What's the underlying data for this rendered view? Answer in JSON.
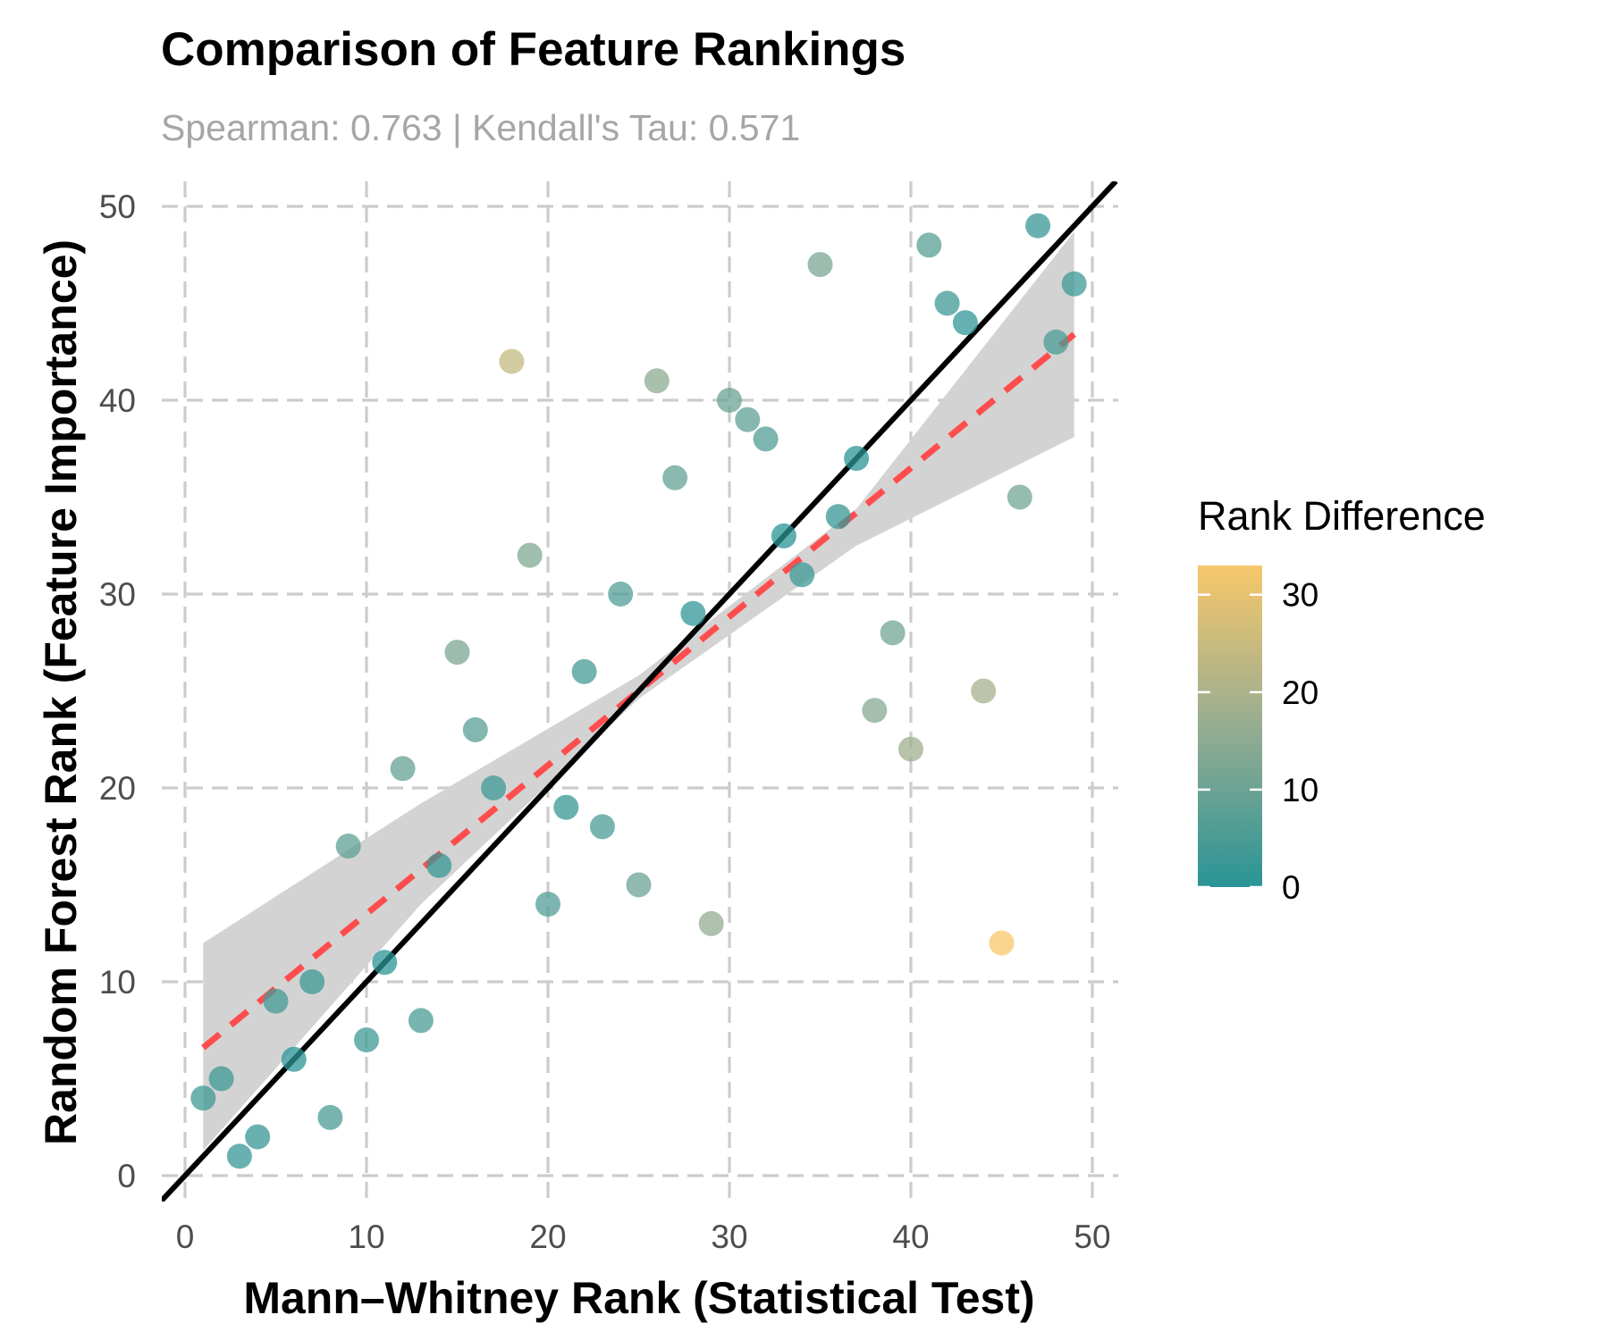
{
  "chart_data": {
    "type": "scatter",
    "title": "Comparison of Feature Rankings",
    "subtitle": "Spearman: 0.763 | Kendall's Tau: 0.571",
    "xlabel": "Mann–Whitney Rank (Statistical Test)",
    "ylabel": "Random Forest Rank (Feature Importance)",
    "xlim": [
      -1.3,
      51.3
    ],
    "ylim": [
      -1.3,
      51.3
    ],
    "x_ticks": [
      0,
      10,
      20,
      30,
      40,
      50
    ],
    "y_ticks": [
      0,
      10,
      20,
      30,
      40,
      50
    ],
    "grid": true,
    "grid_style": "dashed",
    "points": [
      {
        "x": 1,
        "y": 4
      },
      {
        "x": 2,
        "y": 5
      },
      {
        "x": 3,
        "y": 1
      },
      {
        "x": 4,
        "y": 2
      },
      {
        "x": 5,
        "y": 9
      },
      {
        "x": 6,
        "y": 6
      },
      {
        "x": 7,
        "y": 10
      },
      {
        "x": 8,
        "y": 3
      },
      {
        "x": 9,
        "y": 17
      },
      {
        "x": 10,
        "y": 7
      },
      {
        "x": 11,
        "y": 11
      },
      {
        "x": 12,
        "y": 21
      },
      {
        "x": 13,
        "y": 8
      },
      {
        "x": 14,
        "y": 16
      },
      {
        "x": 15,
        "y": 27
      },
      {
        "x": 16,
        "y": 23
      },
      {
        "x": 17,
        "y": 20
      },
      {
        "x": 18,
        "y": 42
      },
      {
        "x": 19,
        "y": 32
      },
      {
        "x": 20,
        "y": 14
      },
      {
        "x": 21,
        "y": 19
      },
      {
        "x": 22,
        "y": 26
      },
      {
        "x": 23,
        "y": 18
      },
      {
        "x": 24,
        "y": 30
      },
      {
        "x": 25,
        "y": 15
      },
      {
        "x": 26,
        "y": 41
      },
      {
        "x": 27,
        "y": 36
      },
      {
        "x": 28,
        "y": 29
      },
      {
        "x": 29,
        "y": 13
      },
      {
        "x": 30,
        "y": 40
      },
      {
        "x": 31,
        "y": 39
      },
      {
        "x": 32,
        "y": 38
      },
      {
        "x": 33,
        "y": 33
      },
      {
        "x": 34,
        "y": 31
      },
      {
        "x": 35,
        "y": 47
      },
      {
        "x": 36,
        "y": 34
      },
      {
        "x": 37,
        "y": 37
      },
      {
        "x": 38,
        "y": 24
      },
      {
        "x": 39,
        "y": 28
      },
      {
        "x": 40,
        "y": 22
      },
      {
        "x": 41,
        "y": 48
      },
      {
        "x": 42,
        "y": 45
      },
      {
        "x": 43,
        "y": 44
      },
      {
        "x": 44,
        "y": 25
      },
      {
        "x": 45,
        "y": 12
      },
      {
        "x": 46,
        "y": 35
      },
      {
        "x": 47,
        "y": 49
      },
      {
        "x": 48,
        "y": 43
      },
      {
        "x": 49,
        "y": 46
      }
    ],
    "reference_line": {
      "slope": 1,
      "intercept": 0,
      "color": "#000000"
    },
    "fit_line": {
      "x": [
        1,
        49
      ],
      "y": [
        6.6,
        43.4
      ],
      "color": "#ff4d4d",
      "style": "dashed"
    },
    "confidence_band": {
      "x": [
        1,
        13,
        25,
        37,
        49
      ],
      "lower": [
        1.3,
        14.0,
        24.6,
        32.5,
        38.1
      ],
      "upper": [
        12.0,
        19.2,
        25.8,
        34.4,
        48.7
      ],
      "color": "#d3d3d3"
    },
    "legend": {
      "title": "Rank Difference",
      "position": "right",
      "ticks": [
        0,
        10,
        20,
        30
      ],
      "range": [
        0,
        33
      ],
      "color_low": "#2a9496",
      "color_mid": "#96ad92",
      "color_high": "#f8c76a"
    }
  }
}
